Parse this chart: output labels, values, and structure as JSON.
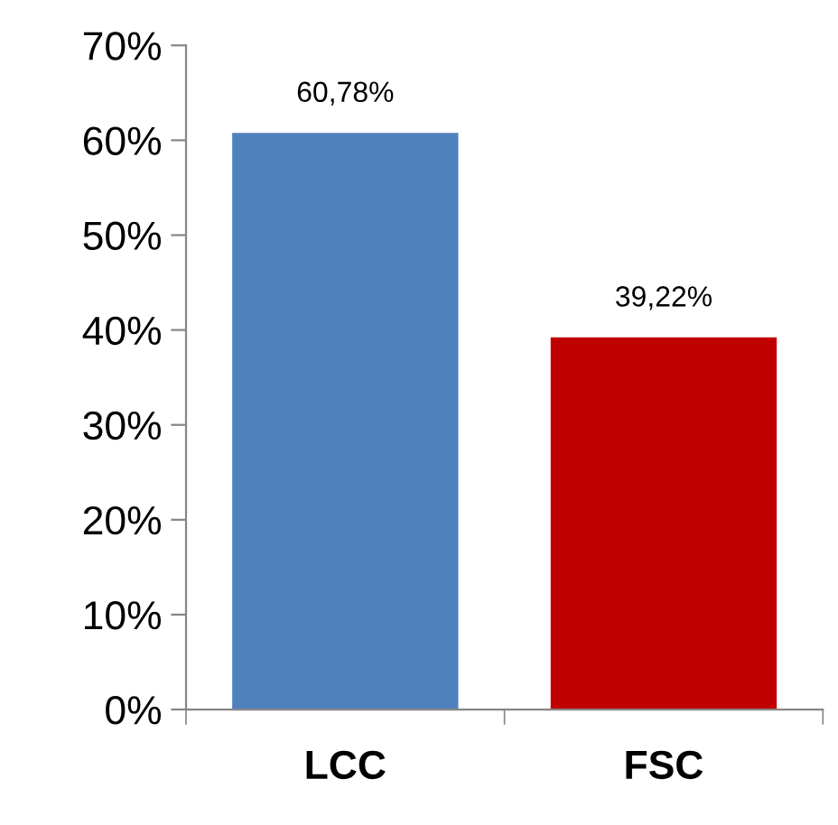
{
  "chart_data": {
    "type": "bar",
    "categories": [
      "LCC",
      "FSC"
    ],
    "values": [
      60.78,
      39.22
    ],
    "colors": [
      "#4f81bd",
      "#c00000"
    ],
    "value_labels": [
      "60,78%",
      "39,22%"
    ],
    "ylim": [
      0,
      70
    ],
    "yticks": [
      {
        "value": 0,
        "label": "0%"
      },
      {
        "value": 10,
        "label": "10%"
      },
      {
        "value": 20,
        "label": "20%"
      },
      {
        "value": 30,
        "label": "30%"
      },
      {
        "value": 40,
        "label": "40%"
      },
      {
        "value": 50,
        "label": "50%"
      },
      {
        "value": 60,
        "label": "60%"
      },
      {
        "value": 70,
        "label": "70%"
      }
    ],
    "grid": false,
    "legend": false
  }
}
